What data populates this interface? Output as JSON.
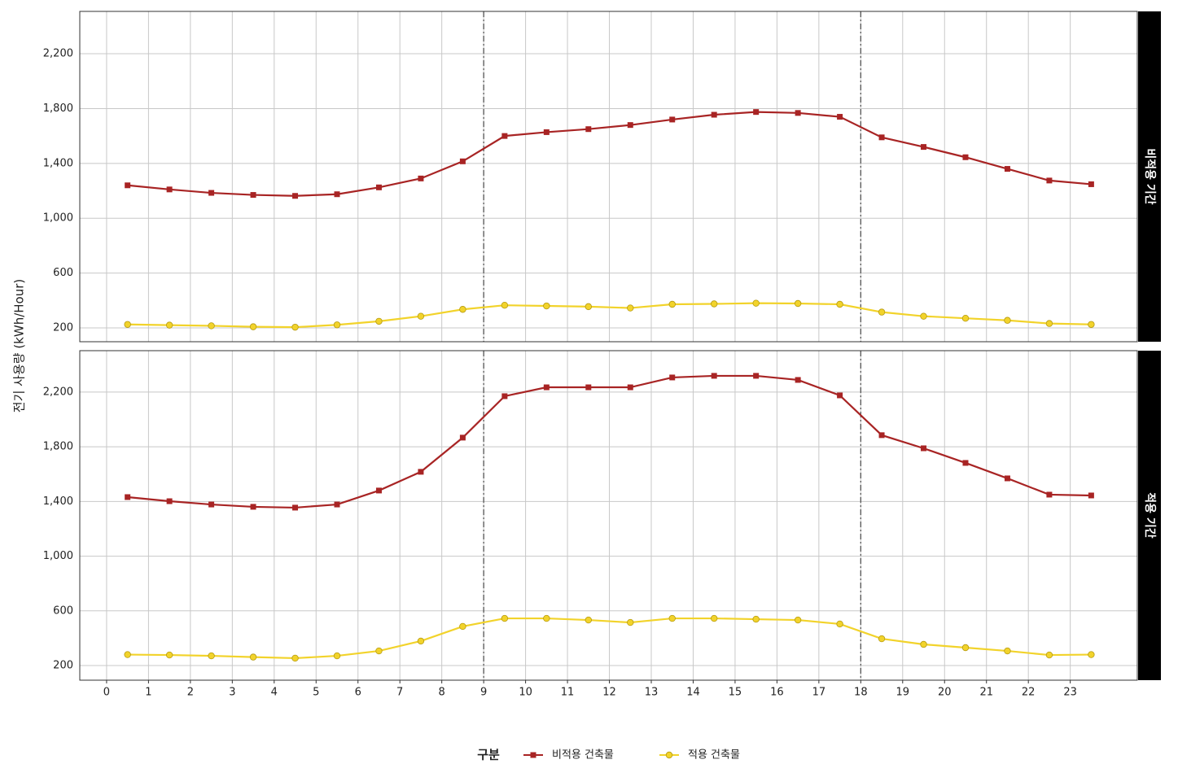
{
  "chart_data": [
    {
      "type": "line",
      "facet": "비적용 기간",
      "y_label": "전기 사용량 (kWh/Hour)",
      "legend_title": "구분",
      "x": [
        0.5,
        1.5,
        2.5,
        3.5,
        4.5,
        5.5,
        6.5,
        7.5,
        8.5,
        9.5,
        10.5,
        11.5,
        12.5,
        13.5,
        14.5,
        15.5,
        16.5,
        17.5,
        18.5,
        19.5,
        20.5,
        21.5,
        22.5,
        23.5
      ],
      "series": [
        {
          "name": "비적용 건축물",
          "color": "#a82424",
          "marker": "square",
          "values": [
            1240,
            1210,
            1185,
            1170,
            1163,
            1175,
            1225,
            1290,
            1415,
            1600,
            1628,
            1650,
            1680,
            1720,
            1755,
            1775,
            1768,
            1740,
            1590,
            1520,
            1445,
            1360,
            1275,
            1248
          ]
        },
        {
          "name": "적용 건축물",
          "color": "#f2d32b",
          "marker": "circle",
          "values": [
            225,
            220,
            215,
            208,
            205,
            222,
            248,
            285,
            335,
            365,
            360,
            355,
            345,
            372,
            375,
            380,
            378,
            372,
            315,
            285,
            270,
            255,
            232,
            225
          ]
        }
      ],
      "xlim": [
        -0.64,
        24.6
      ],
      "xticks": [
        0,
        1,
        2,
        3,
        4,
        5,
        6,
        7,
        8,
        9,
        10,
        11,
        12,
        13,
        14,
        15,
        16,
        17,
        18,
        19,
        20,
        21,
        22,
        23
      ],
      "ylim": [
        99,
        2509
      ],
      "yticks": [
        200,
        600,
        {
          "value": 1000,
          "label": "1,000"
        },
        {
          "value": 1400,
          "label": "1,400"
        },
        {
          "value": 1800,
          "label": "1,800"
        },
        {
          "value": 2200,
          "label": "2,200"
        }
      ],
      "vlines": [
        9,
        18
      ],
      "grid": true
    },
    {
      "type": "line",
      "facet": "적용 기간",
      "x": [
        0.5,
        1.5,
        2.5,
        3.5,
        4.5,
        5.5,
        6.5,
        7.5,
        8.5,
        9.5,
        10.5,
        11.5,
        12.5,
        13.5,
        14.5,
        15.5,
        16.5,
        17.5,
        18.5,
        19.5,
        20.5,
        21.5,
        22.5,
        23.5
      ],
      "series": [
        {
          "name": "비적용 건축물",
          "color": "#a82424",
          "marker": "square",
          "values": [
            1432,
            1402,
            1378,
            1361,
            1355,
            1378,
            1480,
            1617,
            1867,
            2170,
            2235,
            2235,
            2235,
            2307,
            2319,
            2319,
            2289,
            2176,
            1885,
            1789,
            1682,
            1569,
            1450,
            1444
          ]
        },
        {
          "name": "적용 건축물",
          "color": "#f2d32b",
          "marker": "circle",
          "values": [
            280,
            277,
            271,
            262,
            254,
            271,
            307,
            379,
            486,
            545,
            545,
            533,
            515,
            545,
            545,
            539,
            533,
            504,
            396,
            355,
            331,
            307,
            277,
            280
          ]
        }
      ],
      "xlim": [
        -0.64,
        24.6
      ],
      "xticks": [
        0,
        1,
        2,
        3,
        4,
        5,
        6,
        7,
        8,
        9,
        10,
        11,
        12,
        13,
        14,
        15,
        16,
        17,
        18,
        19,
        20,
        21,
        22,
        23
      ],
      "ylim": [
        93,
        2503
      ],
      "yticks": [
        200,
        600,
        {
          "value": 1000,
          "label": "1,000"
        },
        {
          "value": 1400,
          "label": "1,400"
        },
        {
          "value": 1800,
          "label": "1,800"
        },
        {
          "value": 2200,
          "label": "2,200"
        }
      ],
      "vlines": [
        9,
        18
      ],
      "grid": true
    }
  ]
}
